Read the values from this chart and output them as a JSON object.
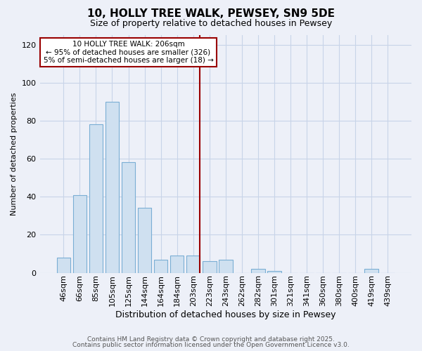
{
  "title": "10, HOLLY TREE WALK, PEWSEY, SN9 5DE",
  "subtitle": "Size of property relative to detached houses in Pewsey",
  "xlabel": "Distribution of detached houses by size in Pewsey",
  "ylabel": "Number of detached properties",
  "bar_labels": [
    "46sqm",
    "66sqm",
    "85sqm",
    "105sqm",
    "125sqm",
    "144sqm",
    "164sqm",
    "184sqm",
    "203sqm",
    "223sqm",
    "243sqm",
    "262sqm",
    "282sqm",
    "301sqm",
    "321sqm",
    "341sqm",
    "360sqm",
    "380sqm",
    "400sqm",
    "419sqm",
    "439sqm"
  ],
  "bar_values": [
    8,
    41,
    78,
    90,
    58,
    34,
    7,
    9,
    9,
    6,
    7,
    0,
    2,
    1,
    0,
    0,
    0,
    0,
    0,
    2,
    0
  ],
  "bar_color": "#cfe0f0",
  "bar_edge_color": "#7aaed4",
  "vline_index": 8,
  "vline_color": "#990000",
  "ylim": [
    0,
    125
  ],
  "yticks": [
    0,
    20,
    40,
    60,
    80,
    100,
    120
  ],
  "annotation_title": "10 HOLLY TREE WALK: 206sqm",
  "annotation_line1": "← 95% of detached houses are smaller (326)",
  "annotation_line2": "5% of semi-detached houses are larger (18) →",
  "footer1": "Contains HM Land Registry data © Crown copyright and database right 2025.",
  "footer2": "Contains public sector information licensed under the Open Government Licence v3.0.",
  "background_color": "#edf0f8",
  "grid_color": "#c8d4e8",
  "title_fontsize": 11,
  "subtitle_fontsize": 9,
  "xlabel_fontsize": 9,
  "ylabel_fontsize": 8,
  "tick_fontsize": 8,
  "annotation_fontsize": 7.5,
  "footer_fontsize": 6.5
}
